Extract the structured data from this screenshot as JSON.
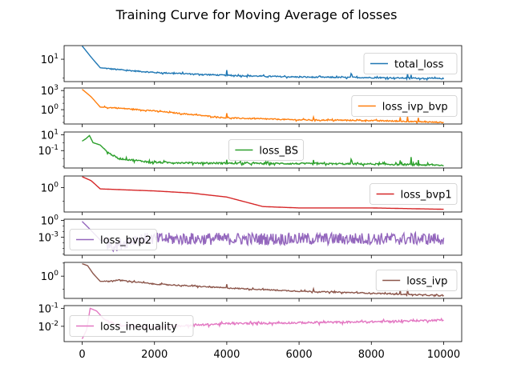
{
  "chart_data": {
    "type": "line",
    "title": "Training Curve for Moving Average of losses",
    "x_ticks": [
      0,
      2000,
      4000,
      6000,
      8000,
      10000
    ],
    "x_tick_labels": [
      "0",
      "2000",
      "4000",
      "6000",
      "8000",
      "10000"
    ],
    "xlim": [
      -500,
      10500
    ],
    "x_scale": "linear",
    "y_scale": "log",
    "grid": false,
    "series": [
      {
        "name": "total_loss",
        "color": "#1f77b4",
        "legend_position": "right",
        "ylim_log10": [
          -0.18,
          1.72
        ],
        "y_tick_exponents": [
          1
        ],
        "y_tick_labels": [
          "10^1"
        ],
        "curve_log10": [
          [
            0,
            1.7
          ],
          [
            250,
            1.1
          ],
          [
            500,
            0.55
          ],
          [
            1000,
            0.45
          ],
          [
            2000,
            0.3
          ],
          [
            4000,
            0.15
          ],
          [
            6000,
            0.06
          ],
          [
            8000,
            0.03
          ],
          [
            10000,
            -0.02
          ]
        ],
        "noise_amp": 0.03,
        "spikes": [
          [
            4000,
            0.25
          ],
          [
            7450,
            0.2
          ],
          [
            9000,
            0.25
          ],
          [
            9100,
            0.15
          ]
        ]
      },
      {
        "name": "loss_ivp_bvp",
        "color": "#ff7f0e",
        "legend_position": "right",
        "ylim_log10": [
          -2.25,
          3.4
        ],
        "y_tick_exponents": [
          0,
          3
        ],
        "y_tick_labels": [
          "10^0",
          "10^3"
        ],
        "curve_log10": [
          [
            0,
            3.2
          ],
          [
            250,
            2.0
          ],
          [
            500,
            0.4
          ],
          [
            1000,
            0.25
          ],
          [
            2000,
            -0.2
          ],
          [
            4000,
            -1.3
          ],
          [
            6000,
            -1.6
          ],
          [
            8000,
            -1.7
          ],
          [
            10000,
            -2.0
          ]
        ],
        "noise_amp": 0.08,
        "spikes": [
          [
            4000,
            0.8
          ],
          [
            6400,
            0.5
          ],
          [
            8800,
            0.7
          ],
          [
            9000,
            0.9
          ],
          [
            9300,
            0.6
          ]
        ]
      },
      {
        "name": "loss_BS",
        "color": "#2ca02c",
        "legend_position": "center",
        "ylim_log10": [
          -3.2,
          1.35
        ],
        "y_tick_exponents": [
          -1,
          1
        ],
        "y_tick_labels": [
          "10^-1",
          "10^1"
        ],
        "curve_log10": [
          [
            0,
            0.2
          ],
          [
            100,
            0.5
          ],
          [
            200,
            0.9
          ],
          [
            300,
            0.0
          ],
          [
            500,
            -0.3
          ],
          [
            700,
            -1.2
          ],
          [
            1000,
            -2.0
          ],
          [
            2000,
            -2.5
          ],
          [
            4000,
            -2.6
          ],
          [
            6000,
            -2.65
          ],
          [
            8000,
            -2.7
          ],
          [
            10000,
            -2.85
          ]
        ],
        "noise_amp": 0.1,
        "spikes": [
          [
            9100,
            0.9
          ],
          [
            9300,
            0.6
          ],
          [
            8800,
            0.6
          ],
          [
            7450,
            0.5
          ],
          [
            6400,
            0.4
          ],
          [
            4000,
            0.5
          ]
        ]
      },
      {
        "name": "loss_bvp1",
        "color": "#d62728",
        "legend_position": "right",
        "ylim_log10": [
          -1.8,
          0.85
        ],
        "y_tick_exponents": [
          0
        ],
        "y_tick_labels": [
          "10^0"
        ],
        "curve_log10": [
          [
            0,
            0.8
          ],
          [
            250,
            0.5
          ],
          [
            500,
            -0.1
          ],
          [
            1000,
            -0.15
          ],
          [
            2000,
            -0.25
          ],
          [
            3000,
            -0.4
          ],
          [
            4000,
            -0.7
          ],
          [
            5000,
            -1.4
          ],
          [
            6000,
            -1.5
          ],
          [
            8000,
            -1.5
          ],
          [
            10000,
            -1.6
          ]
        ],
        "noise_amp": 0.0,
        "spikes": []
      },
      {
        "name": "loss_bvp2",
        "color": "#9467bd",
        "legend_position": "left",
        "ylim_log10": [
          -6.2,
          0.2
        ],
        "y_tick_exponents": [
          -3,
          0
        ],
        "y_tick_labels": [
          "10^-3",
          "10^0"
        ],
        "curve_log10": [
          [
            0,
            -0.2
          ],
          [
            200,
            -1.5
          ],
          [
            500,
            -3.5
          ],
          [
            900,
            -4.5
          ],
          [
            1500,
            -3.3
          ],
          [
            10000,
            -3.3
          ]
        ],
        "noise_amp": 1.1,
        "spikes": []
      },
      {
        "name": "loss_ivp",
        "color": "#8c564b",
        "legend_position": "right",
        "ylim_log10": [
          -1.7,
          1.05
        ],
        "y_tick_exponents": [
          0
        ],
        "y_tick_labels": [
          "10^0"
        ],
        "curve_log10": [
          [
            0,
            0.95
          ],
          [
            150,
            0.8
          ],
          [
            300,
            0.2
          ],
          [
            500,
            -0.4
          ],
          [
            700,
            -0.4
          ],
          [
            1000,
            -0.3
          ],
          [
            2000,
            -0.6
          ],
          [
            4000,
            -0.9
          ],
          [
            6000,
            -1.15
          ],
          [
            8000,
            -1.3
          ],
          [
            10000,
            -1.5
          ]
        ],
        "noise_amp": 0.04,
        "spikes": [
          [
            4000,
            0.25
          ],
          [
            6400,
            0.25
          ],
          [
            8800,
            0.3
          ],
          [
            9000,
            0.45
          ]
        ]
      },
      {
        "name": "loss_inequality",
        "color": "#e377c2",
        "legend_position": "left",
        "ylim_log10": [
          -2.85,
          -0.85
        ],
        "y_tick_exponents": [
          -2,
          -1
        ],
        "y_tick_labels": [
          "10^-2",
          "10^-1"
        ],
        "curve_log10": [
          [
            0,
            -2.7
          ],
          [
            120,
            -2.2
          ],
          [
            220,
            -1.0
          ],
          [
            400,
            -1.15
          ],
          [
            600,
            -1.6
          ],
          [
            1000,
            -1.95
          ],
          [
            2000,
            -2.05
          ],
          [
            3000,
            -1.95
          ],
          [
            4000,
            -1.85
          ],
          [
            6000,
            -1.8
          ],
          [
            8000,
            -1.75
          ],
          [
            10000,
            -1.65
          ]
        ],
        "noise_amp": 0.05,
        "spikes": []
      }
    ]
  }
}
